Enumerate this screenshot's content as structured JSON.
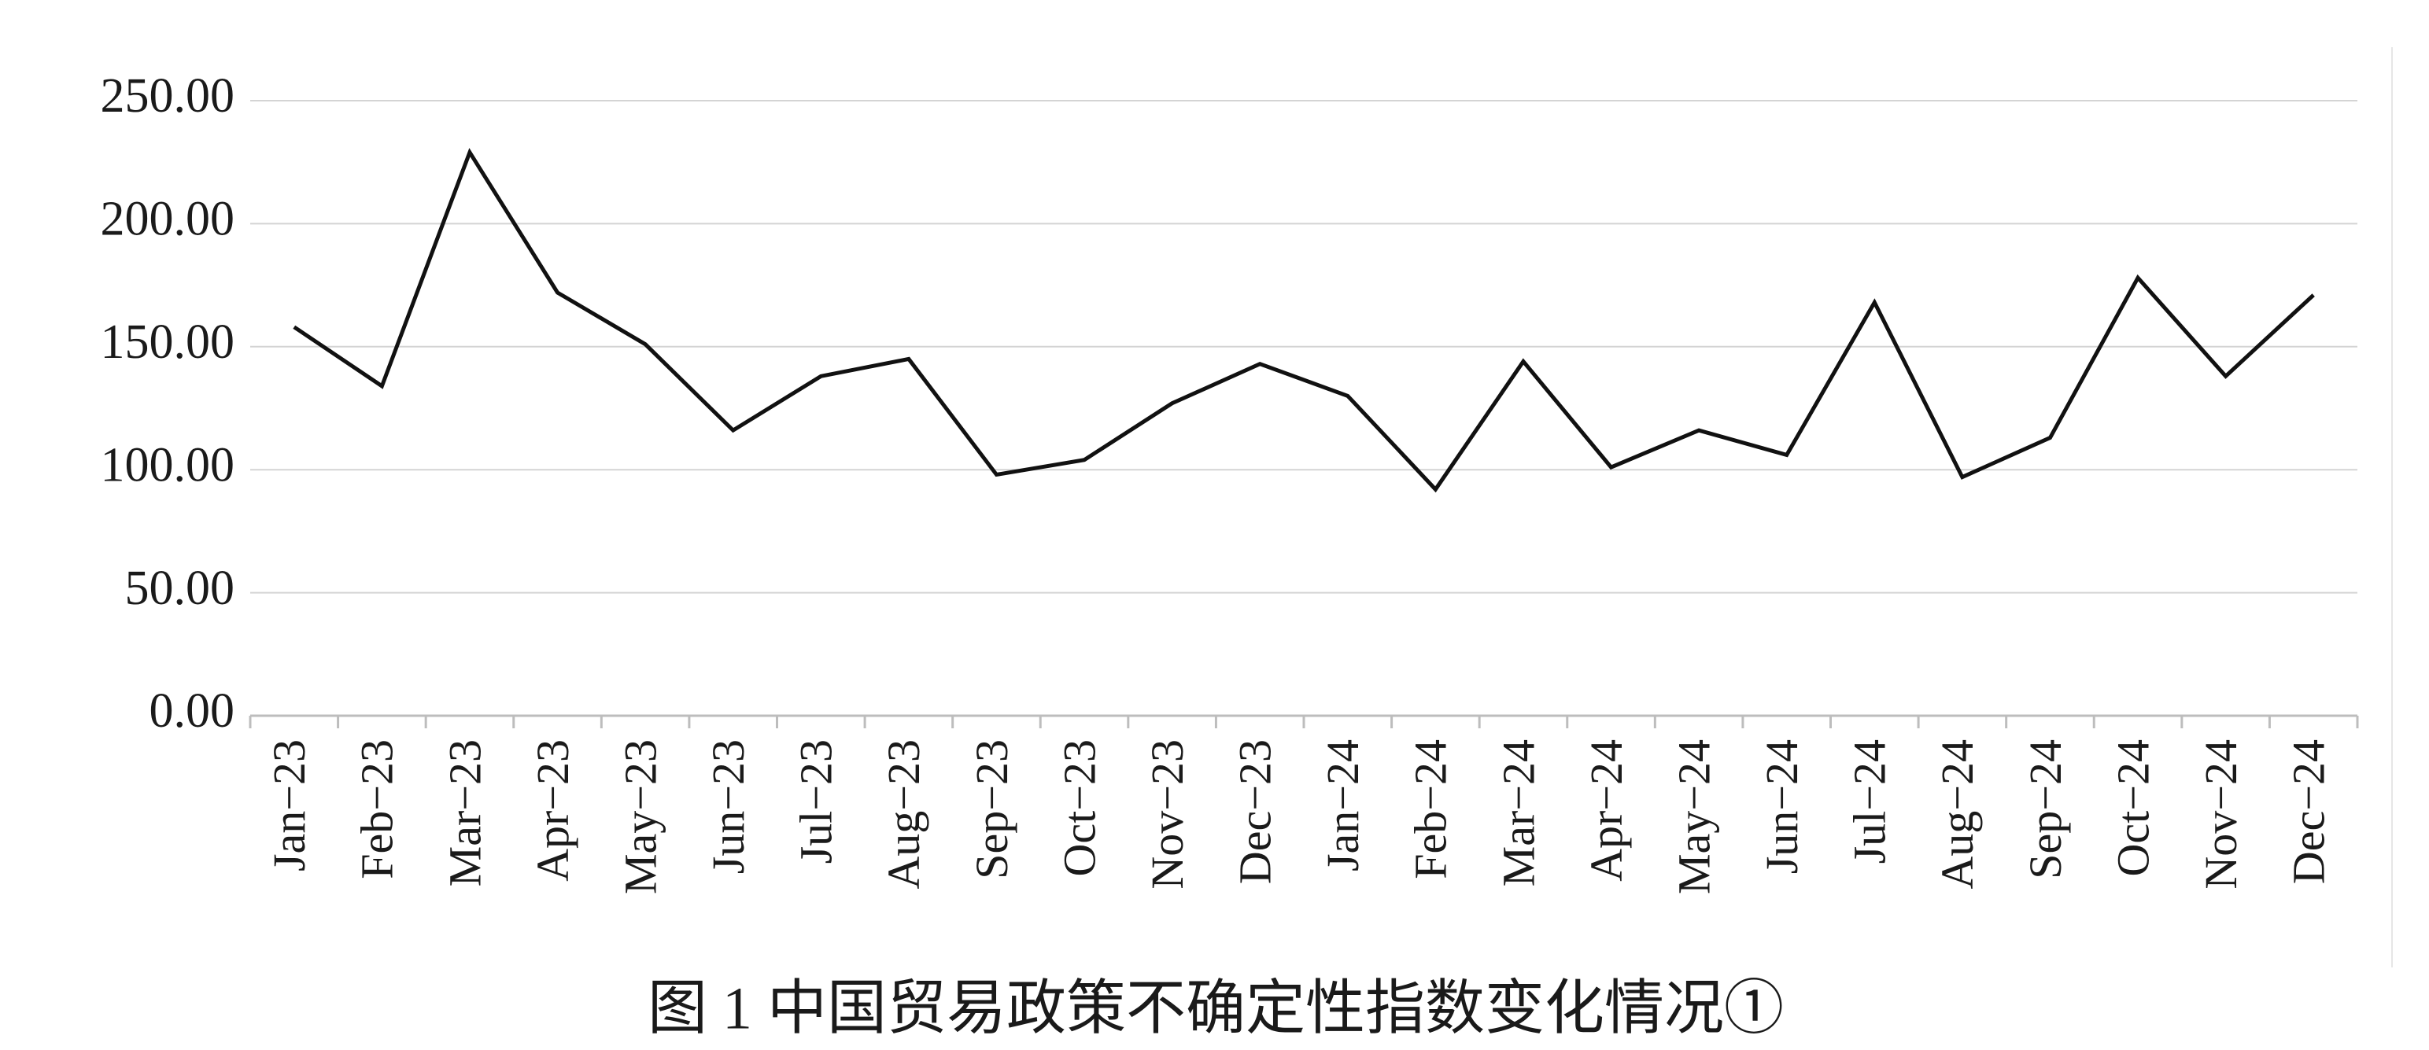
{
  "chart_data": {
    "type": "line",
    "title": "图 1  中国贸易政策不确定性指数变化情况①",
    "categories": [
      "Jan−23",
      "Feb−23",
      "Mar−23",
      "Apr−23",
      "May−23",
      "Jun−23",
      "Jul−23",
      "Aug−23",
      "Sep−23",
      "Oct−23",
      "Nov−23",
      "Dec−23",
      "Jan−24",
      "Feb−24",
      "Mar−24",
      "Apr−24",
      "May−24",
      "Jun−24",
      "Jul−24",
      "Aug−24",
      "Sep−24",
      "Oct−24",
      "Nov−24",
      "Dec−24"
    ],
    "values": [
      158,
      134,
      229,
      172,
      151,
      116,
      138,
      145,
      98,
      104,
      127,
      143,
      130,
      92,
      144,
      101,
      116,
      106,
      168,
      97,
      113,
      178,
      138,
      171
    ],
    "color": "#111111",
    "ylim": [
      0,
      250
    ],
    "yticks": [
      {
        "value": 0,
        "label": "0.00"
      },
      {
        "value": 50,
        "label": "50.00"
      },
      {
        "value": 100,
        "label": "100.00"
      },
      {
        "value": 150,
        "label": "150.00"
      },
      {
        "value": 200,
        "label": "200.00"
      },
      {
        "value": 250,
        "label": "250.00"
      }
    ],
    "grid": true
  }
}
